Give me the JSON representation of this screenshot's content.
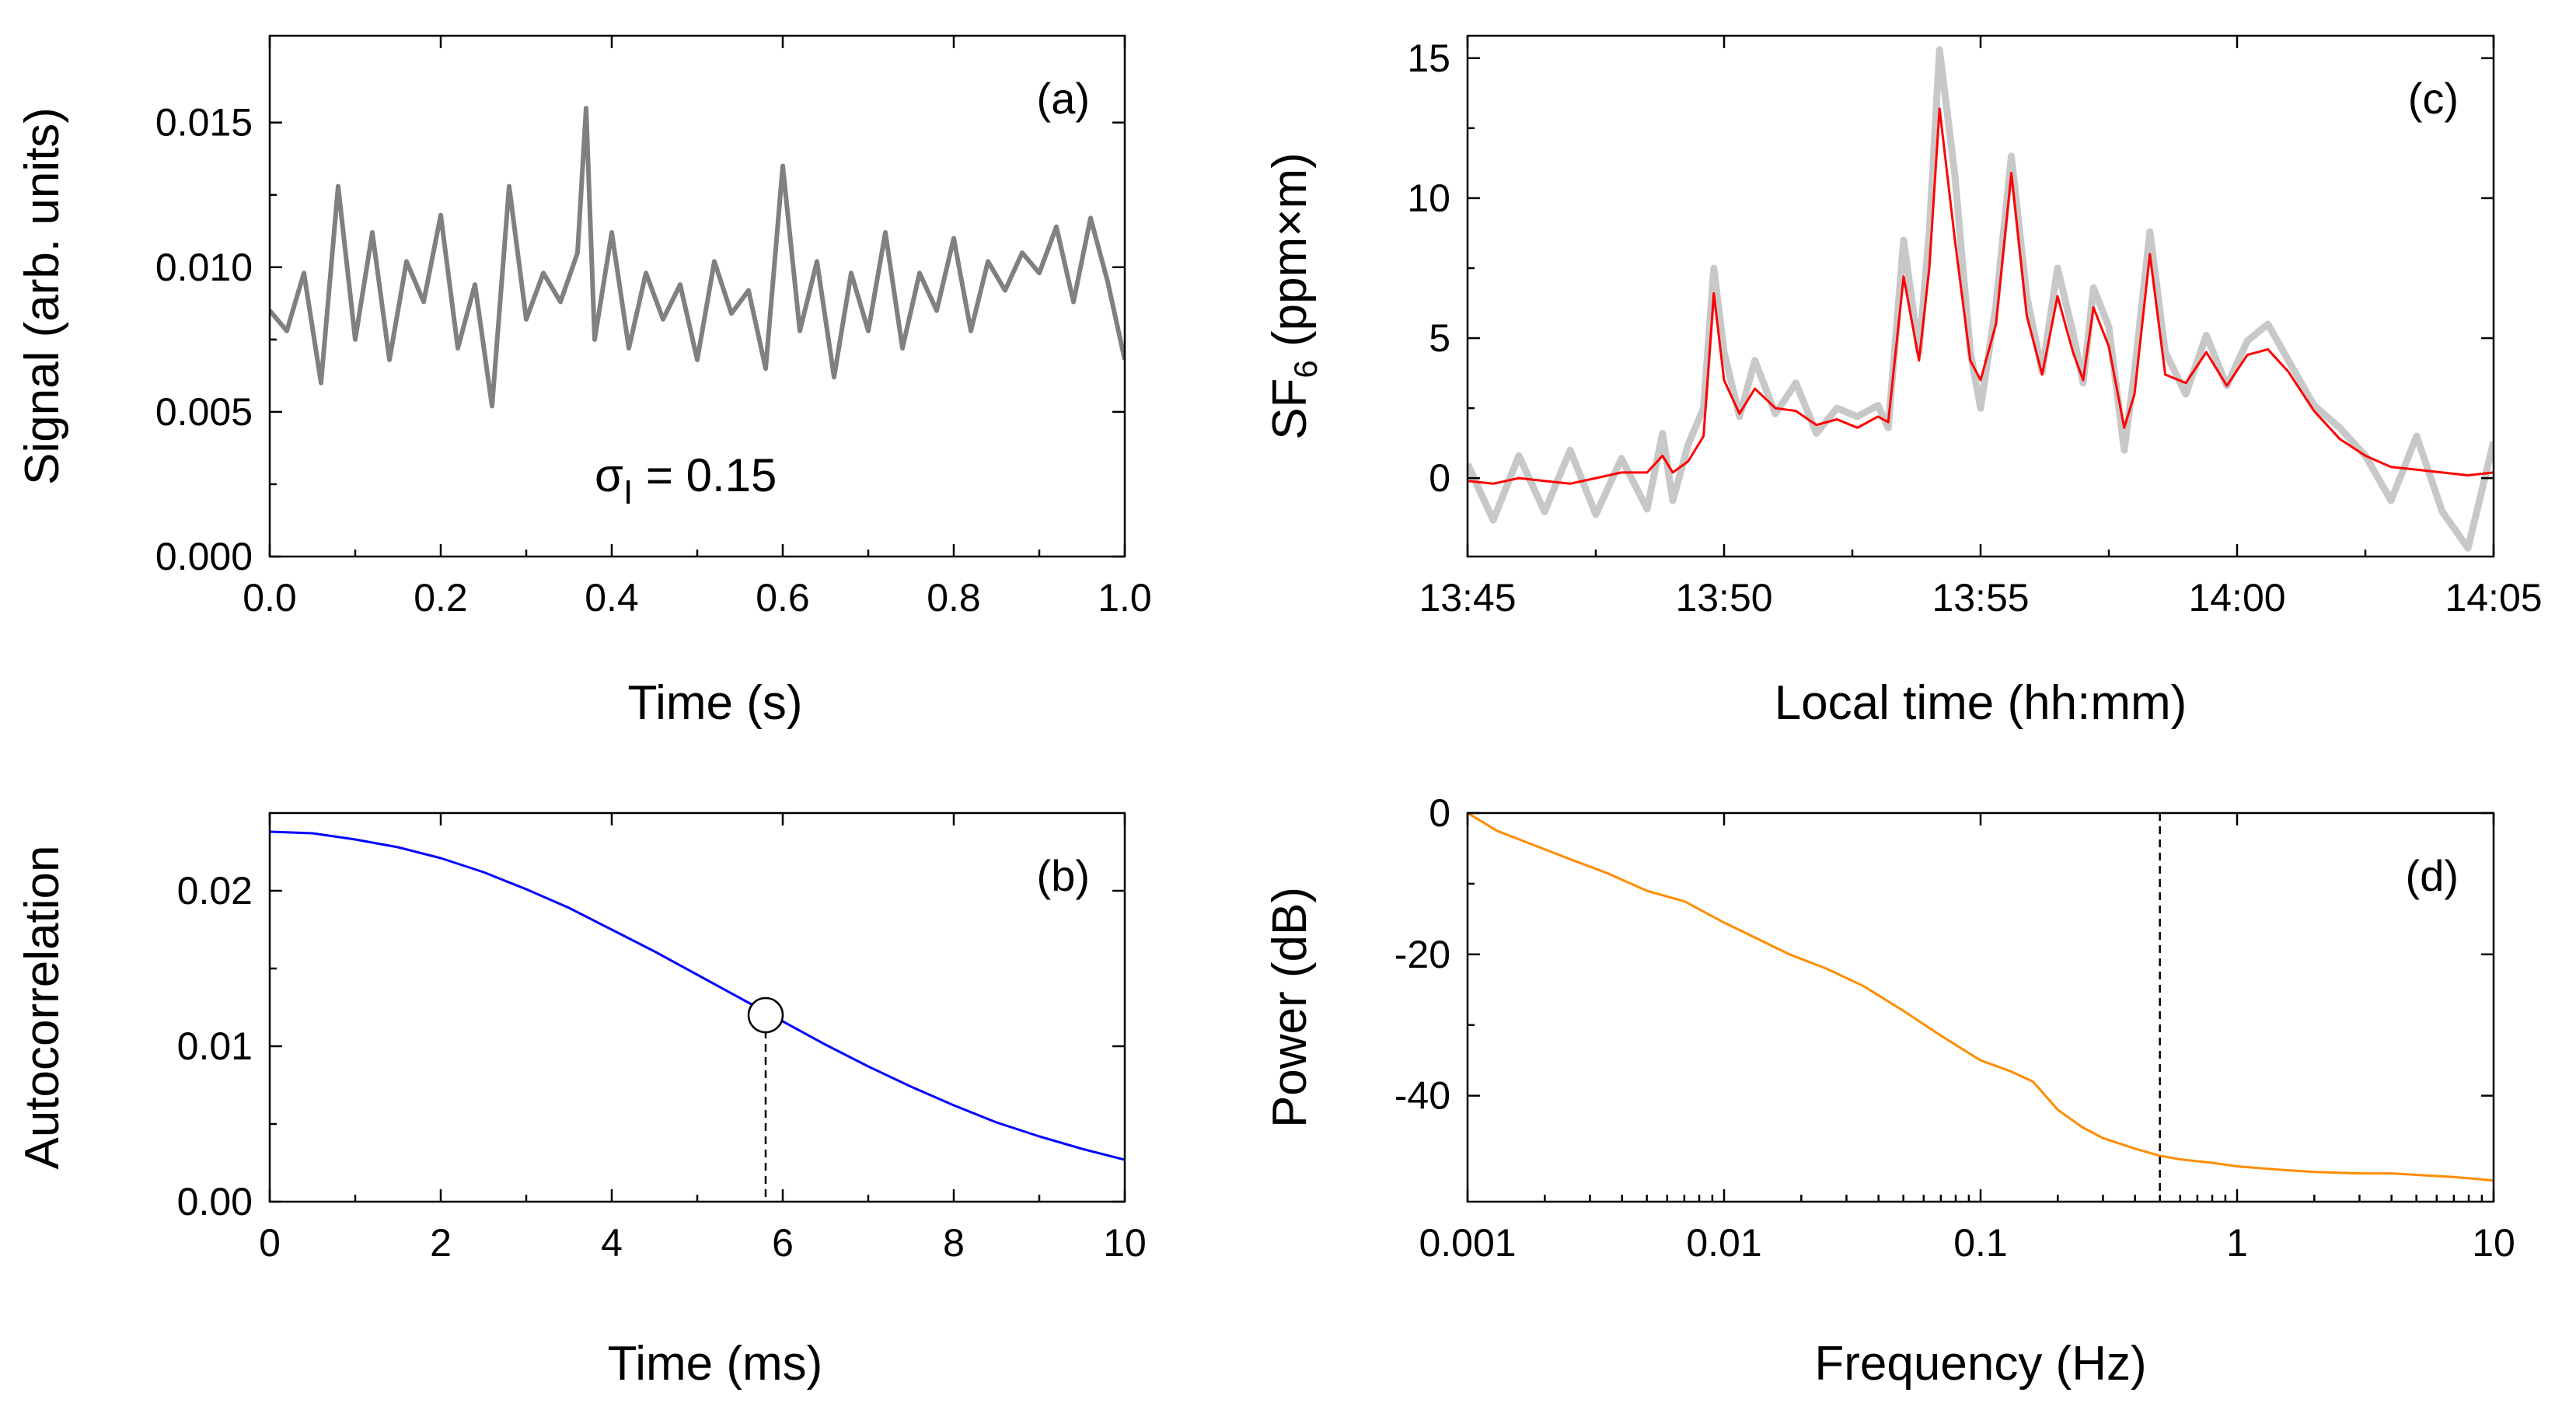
{
  "chart_data": [
    {
      "id": "a",
      "type": "line",
      "panel_label": "(a)",
      "xlabel": "Time (s)",
      "ylabel": "Signal (arb. units)",
      "xlim": [
        0,
        1
      ],
      "ylim": [
        0,
        0.018
      ],
      "xticks": [
        0.0,
        0.2,
        0.4,
        0.6,
        0.8,
        1.0
      ],
      "xtick_labels": [
        "0.0",
        "0.2",
        "0.4",
        "0.6",
        "0.8",
        "1.0"
      ],
      "yticks": [
        0.0,
        0.005,
        0.01,
        0.015
      ],
      "ytick_labels": [
        "0.000",
        "0.005",
        "0.010",
        "0.015"
      ],
      "annotation": {
        "symbol": "σ",
        "subscript": "I",
        "text": " = 0.15"
      },
      "series": [
        {
          "color": "#808080",
          "x": [
            0.0,
            0.02,
            0.04,
            0.06,
            0.08,
            0.1,
            0.12,
            0.14,
            0.16,
            0.18,
            0.2,
            0.22,
            0.24,
            0.26,
            0.28,
            0.3,
            0.32,
            0.34,
            0.36,
            0.37,
            0.38,
            0.4,
            0.42,
            0.44,
            0.46,
            0.48,
            0.5,
            0.52,
            0.54,
            0.56,
            0.58,
            0.6,
            0.62,
            0.64,
            0.66,
            0.68,
            0.7,
            0.72,
            0.74,
            0.76,
            0.78,
            0.8,
            0.82,
            0.84,
            0.86,
            0.88,
            0.9,
            0.92,
            0.94,
            0.96,
            0.98,
            1.0
          ],
          "y": [
            0.0085,
            0.0078,
            0.0098,
            0.006,
            0.0128,
            0.0075,
            0.0112,
            0.0068,
            0.0102,
            0.0088,
            0.0118,
            0.0072,
            0.0094,
            0.0052,
            0.0128,
            0.0082,
            0.0098,
            0.0088,
            0.0105,
            0.0155,
            0.0075,
            0.0112,
            0.0072,
            0.0098,
            0.0082,
            0.0094,
            0.0068,
            0.0102,
            0.0084,
            0.0092,
            0.0065,
            0.0135,
            0.0078,
            0.0102,
            0.0062,
            0.0098,
            0.0078,
            0.0112,
            0.0072,
            0.0098,
            0.0085,
            0.011,
            0.0078,
            0.0102,
            0.0092,
            0.0105,
            0.0098,
            0.0114,
            0.0088,
            0.0117,
            0.0095,
            0.0068
          ]
        }
      ]
    },
    {
      "id": "b",
      "type": "line",
      "panel_label": "(b)",
      "xlabel": "Time (ms)",
      "ylabel": "Autocorrelation",
      "xlim": [
        0,
        10
      ],
      "ylim": [
        0,
        0.025
      ],
      "xticks": [
        0,
        2,
        4,
        6,
        8,
        10
      ],
      "xtick_labels": [
        "0",
        "2",
        "4",
        "6",
        "8",
        "10"
      ],
      "yticks": [
        0.0,
        0.01,
        0.02
      ],
      "ytick_labels": [
        "0.00",
        "0.01",
        "0.02"
      ],
      "marker": {
        "x": 5.8,
        "y": 0.012
      },
      "vline_x": 5.8,
      "series": [
        {
          "color": "#0000ff",
          "x": [
            0,
            0.5,
            1,
            1.5,
            2,
            2.5,
            3,
            3.5,
            4,
            4.5,
            5,
            5.5,
            6,
            6.5,
            7,
            7.5,
            8,
            8.5,
            9,
            9.5,
            10
          ],
          "y": [
            0.0238,
            0.0237,
            0.0233,
            0.0228,
            0.0221,
            0.0212,
            0.0201,
            0.0189,
            0.0175,
            0.0161,
            0.0146,
            0.0131,
            0.0116,
            0.0101,
            0.0087,
            0.0074,
            0.0062,
            0.0051,
            0.0042,
            0.0034,
            0.0027
          ]
        }
      ]
    },
    {
      "id": "c",
      "type": "line",
      "panel_label": "(c)",
      "xlabel": "Local time (hh:mm)",
      "ylabel": "SF6 (ppm×m)",
      "ylabel_parts": {
        "main": "SF",
        "sub": "6",
        "rest": " (ppm×m)"
      },
      "xlim": [
        0,
        20
      ],
      "ylim": [
        -2.8,
        15.8
      ],
      "xticks": [
        0,
        5,
        10,
        15,
        20
      ],
      "xtick_labels": [
        "13:45",
        "13:50",
        "13:55",
        "14:00",
        "14:05"
      ],
      "yticks": [
        0,
        5,
        10,
        15
      ],
      "ytick_labels": [
        "0",
        "5",
        "10",
        "15"
      ],
      "series": [
        {
          "color": "#c8c8c8",
          "x": [
            0,
            0.5,
            1,
            1.5,
            2,
            2.5,
            3,
            3.5,
            3.8,
            4,
            4.3,
            4.6,
            4.8,
            5,
            5.3,
            5.6,
            6,
            6.4,
            6.8,
            7.2,
            7.6,
            8,
            8.2,
            8.5,
            8.8,
            9,
            9.2,
            9.5,
            9.8,
            10,
            10.3,
            10.6,
            10.9,
            11.2,
            11.5,
            11.8,
            12,
            12.2,
            12.5,
            12.8,
            13,
            13.3,
            13.6,
            14,
            14.4,
            14.8,
            15.2,
            15.6,
            16,
            16.5,
            17,
            17.5,
            18,
            18.5,
            19,
            19.5,
            20
          ],
          "y": [
            0.5,
            -1.5,
            0.8,
            -1.2,
            1,
            -1.3,
            0.7,
            -1.1,
            1.6,
            -0.8,
            1.2,
            2.5,
            7.5,
            4.5,
            2.2,
            4.2,
            2.3,
            3.4,
            1.6,
            2.5,
            2.2,
            2.6,
            1.8,
            8.5,
            4.5,
            8.8,
            15.3,
            10.8,
            4.5,
            2.5,
            6.2,
            11.5,
            6.5,
            3.8,
            7.5,
            5.2,
            3.4,
            6.8,
            5.4,
            1,
            3.8,
            8.8,
            4.5,
            3,
            5.1,
            3.3,
            4.9,
            5.5,
            4.2,
            2.6,
            1.8,
            0.8,
            -0.8,
            1.5,
            -1.2,
            -2.5,
            1.3
          ]
        },
        {
          "color": "#ff0000",
          "x": [
            0,
            0.5,
            1,
            1.5,
            2,
            2.5,
            3,
            3.5,
            3.8,
            4,
            4.3,
            4.6,
            4.8,
            5,
            5.3,
            5.6,
            6,
            6.4,
            6.8,
            7.2,
            7.6,
            8,
            8.2,
            8.5,
            8.8,
            9,
            9.2,
            9.5,
            9.8,
            10,
            10.3,
            10.6,
            10.9,
            11.2,
            11.5,
            11.8,
            12,
            12.2,
            12.5,
            12.8,
            13,
            13.3,
            13.6,
            14,
            14.4,
            14.8,
            15.2,
            15.6,
            16,
            16.5,
            17,
            17.5,
            18,
            18.5,
            19,
            19.5,
            20
          ],
          "y": [
            -0.1,
            -0.2,
            0,
            -0.1,
            -0.2,
            0,
            0.2,
            0.2,
            0.8,
            0.2,
            0.6,
            1.5,
            6.6,
            3.5,
            2.3,
            3.2,
            2.5,
            2.4,
            1.9,
            2.1,
            1.8,
            2.2,
            2,
            7.2,
            4.2,
            7.5,
            13.2,
            8.5,
            4.2,
            3.5,
            5.5,
            10.9,
            5.8,
            3.7,
            6.5,
            4.5,
            3.5,
            6.1,
            4.7,
            1.8,
            3,
            8,
            3.7,
            3.4,
            4.5,
            3.3,
            4.4,
            4.6,
            3.8,
            2.4,
            1.4,
            0.8,
            0.4,
            0.3,
            0.2,
            0.1,
            0.2
          ]
        }
      ]
    },
    {
      "id": "d",
      "type": "line",
      "panel_label": "(d)",
      "xlabel": "Frequency (Hz)",
      "ylabel": "Power (dB)",
      "xscale": "log",
      "xlim": [
        0.001,
        10
      ],
      "ylim": [
        -55,
        0
      ],
      "xticks": [
        0.001,
        0.01,
        0.1,
        1,
        10
      ],
      "xtick_labels": [
        "0.001",
        "0.01",
        "0.1",
        "1",
        "10"
      ],
      "yticks": [
        0,
        -20,
        -40
      ],
      "ytick_labels": [
        "0",
        "-20",
        "-40"
      ],
      "vline_x": 0.5,
      "series": [
        {
          "color": "#ff8c00",
          "x": [
            0.001,
            0.0013,
            0.0018,
            0.0025,
            0.0035,
            0.005,
            0.007,
            0.01,
            0.013,
            0.018,
            0.025,
            0.035,
            0.05,
            0.07,
            0.1,
            0.13,
            0.16,
            0.2,
            0.25,
            0.3,
            0.4,
            0.5,
            0.6,
            0.8,
            1,
            1.5,
            2,
            3,
            4,
            5,
            7,
            10
          ],
          "y": [
            0,
            -2.5,
            -4.5,
            -6.5,
            -8.5,
            -11,
            -12.5,
            -15.5,
            -17.5,
            -20,
            -22,
            -24.5,
            -28,
            -31.5,
            -35,
            -36.5,
            -38,
            -42,
            -44.5,
            -46,
            -47.5,
            -48.5,
            -49,
            -49.5,
            -50,
            -50.5,
            -50.8,
            -51,
            -51,
            -51.2,
            -51.5,
            -52
          ]
        }
      ]
    }
  ]
}
